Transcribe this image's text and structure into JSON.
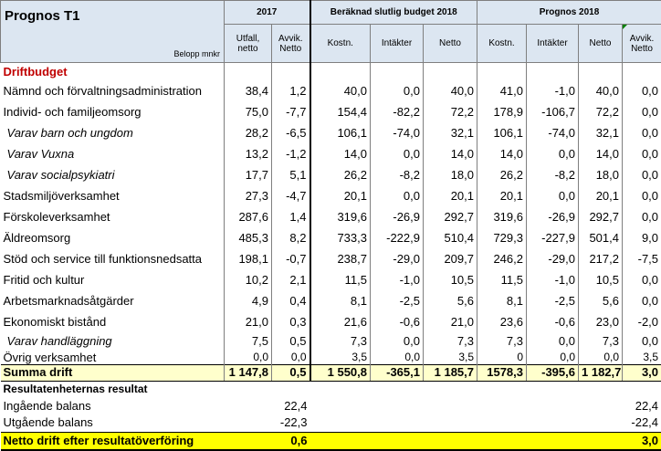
{
  "header": {
    "title": "Prognos T1",
    "unit": "Belopp mnkr",
    "groups": [
      "2017",
      "Beräknad slutlig budget 2018",
      "Prognos 2018"
    ],
    "sub": [
      "Utfall, netto",
      "Avvik. Netto",
      "Kostn.",
      "Intäkter",
      "Netto",
      "Kostn.",
      "Intäkter",
      "Netto",
      "Avvik. Netto"
    ]
  },
  "section_label": "Driftbudget",
  "rows": [
    {
      "label": "Nämnd och förvaltningsadministration",
      "italic": false,
      "v": [
        "38,4",
        "1,2",
        "40,0",
        "0,0",
        "40,0",
        "41,0",
        "-1,0",
        "40,0",
        "0,0"
      ]
    },
    {
      "label": "Individ- och familjeomsorg",
      "italic": false,
      "v": [
        "75,0",
        "-7,7",
        "154,4",
        "-82,2",
        "72,2",
        "178,9",
        "-106,7",
        "72,2",
        "0,0"
      ]
    },
    {
      "label": "Varav barn och ungdom",
      "italic": true,
      "v": [
        "28,2",
        "-6,5",
        "106,1",
        "-74,0",
        "32,1",
        "106,1",
        "-74,0",
        "32,1",
        "0,0"
      ]
    },
    {
      "label": "Varav Vuxna",
      "italic": true,
      "v": [
        "13,2",
        "-1,2",
        "14,0",
        "0,0",
        "14,0",
        "14,0",
        "0,0",
        "14,0",
        "0,0"
      ]
    },
    {
      "label": "Varav socialpsykiatri",
      "italic": true,
      "v": [
        "17,7",
        "5,1",
        "26,2",
        "-8,2",
        "18,0",
        "26,2",
        "-8,2",
        "18,0",
        "0,0"
      ]
    },
    {
      "label": "Stadsmiljöverksamhet",
      "italic": false,
      "v": [
        "27,3",
        "-4,7",
        "20,1",
        "0,0",
        "20,1",
        "20,1",
        "0,0",
        "20,1",
        "0,0"
      ]
    },
    {
      "label": "Förskoleverksamhet",
      "italic": false,
      "v": [
        "287,6",
        "1,4",
        "319,6",
        "-26,9",
        "292,7",
        "319,6",
        "-26,9",
        "292,7",
        "0,0"
      ]
    },
    {
      "label": "Äldreomsorg",
      "italic": false,
      "v": [
        "485,3",
        "8,2",
        "733,3",
        "-222,9",
        "510,4",
        "729,3",
        "-227,9",
        "501,4",
        "9,0"
      ]
    },
    {
      "label": "Stöd och service till funktionsnedsatta",
      "italic": false,
      "v": [
        "198,1",
        "-0,7",
        "238,7",
        "-29,0",
        "209,7",
        "246,2",
        "-29,0",
        "217,2",
        "-7,5"
      ]
    },
    {
      "label": "Fritid och kultur",
      "italic": false,
      "v": [
        "10,2",
        "2,1",
        "11,5",
        "-1,0",
        "10,5",
        "11,5",
        "-1,0",
        "10,5",
        "0,0"
      ]
    },
    {
      "label": "Arbetsmarknadsåtgärder",
      "italic": false,
      "v": [
        "4,9",
        "0,4",
        "8,1",
        "-2,5",
        "5,6",
        "8,1",
        "-2,5",
        "5,6",
        "0,0"
      ]
    },
    {
      "label": "Ekonomiskt bistånd",
      "italic": false,
      "v": [
        "21,0",
        "0,3",
        "21,6",
        "-0,6",
        "21,0",
        "23,6",
        "-0,6",
        "23,0",
        "-2,0"
      ]
    },
    {
      "label": "Varav handläggning",
      "italic": true,
      "v": [
        "7,5",
        "0,5",
        "7,3",
        "0,0",
        "7,3",
        "7,3",
        "0,0",
        "7,3",
        "0,0"
      ]
    },
    {
      "label": "Övrig verksamhet",
      "italic": false,
      "v": [
        "0,0",
        "0,0",
        "3,5",
        "0,0",
        "3,5",
        "0",
        "0,0",
        "0,0",
        "3,5"
      ]
    }
  ],
  "summa": {
    "label": "Summa drift",
    "v": [
      "1 147,8",
      "0,5",
      "1 550,8",
      "-365,1",
      "1 185,7",
      "1578,3",
      "-395,6",
      "1 182,7",
      "3,0"
    ]
  },
  "result_header": "Resultatenheternas resultat",
  "ingaende": {
    "label": "Ingående balans",
    "avvik2017": "22,4",
    "avvik2018": "22,4"
  },
  "utgaende": {
    "label": "Utgående balans",
    "avvik2017": "-22,3",
    "avvik2018": "-22,4"
  },
  "netto_efter": {
    "label": "Netto drift efter resultatöverföring",
    "avvik2017": "0,6",
    "avvik2018": "3,0"
  }
}
